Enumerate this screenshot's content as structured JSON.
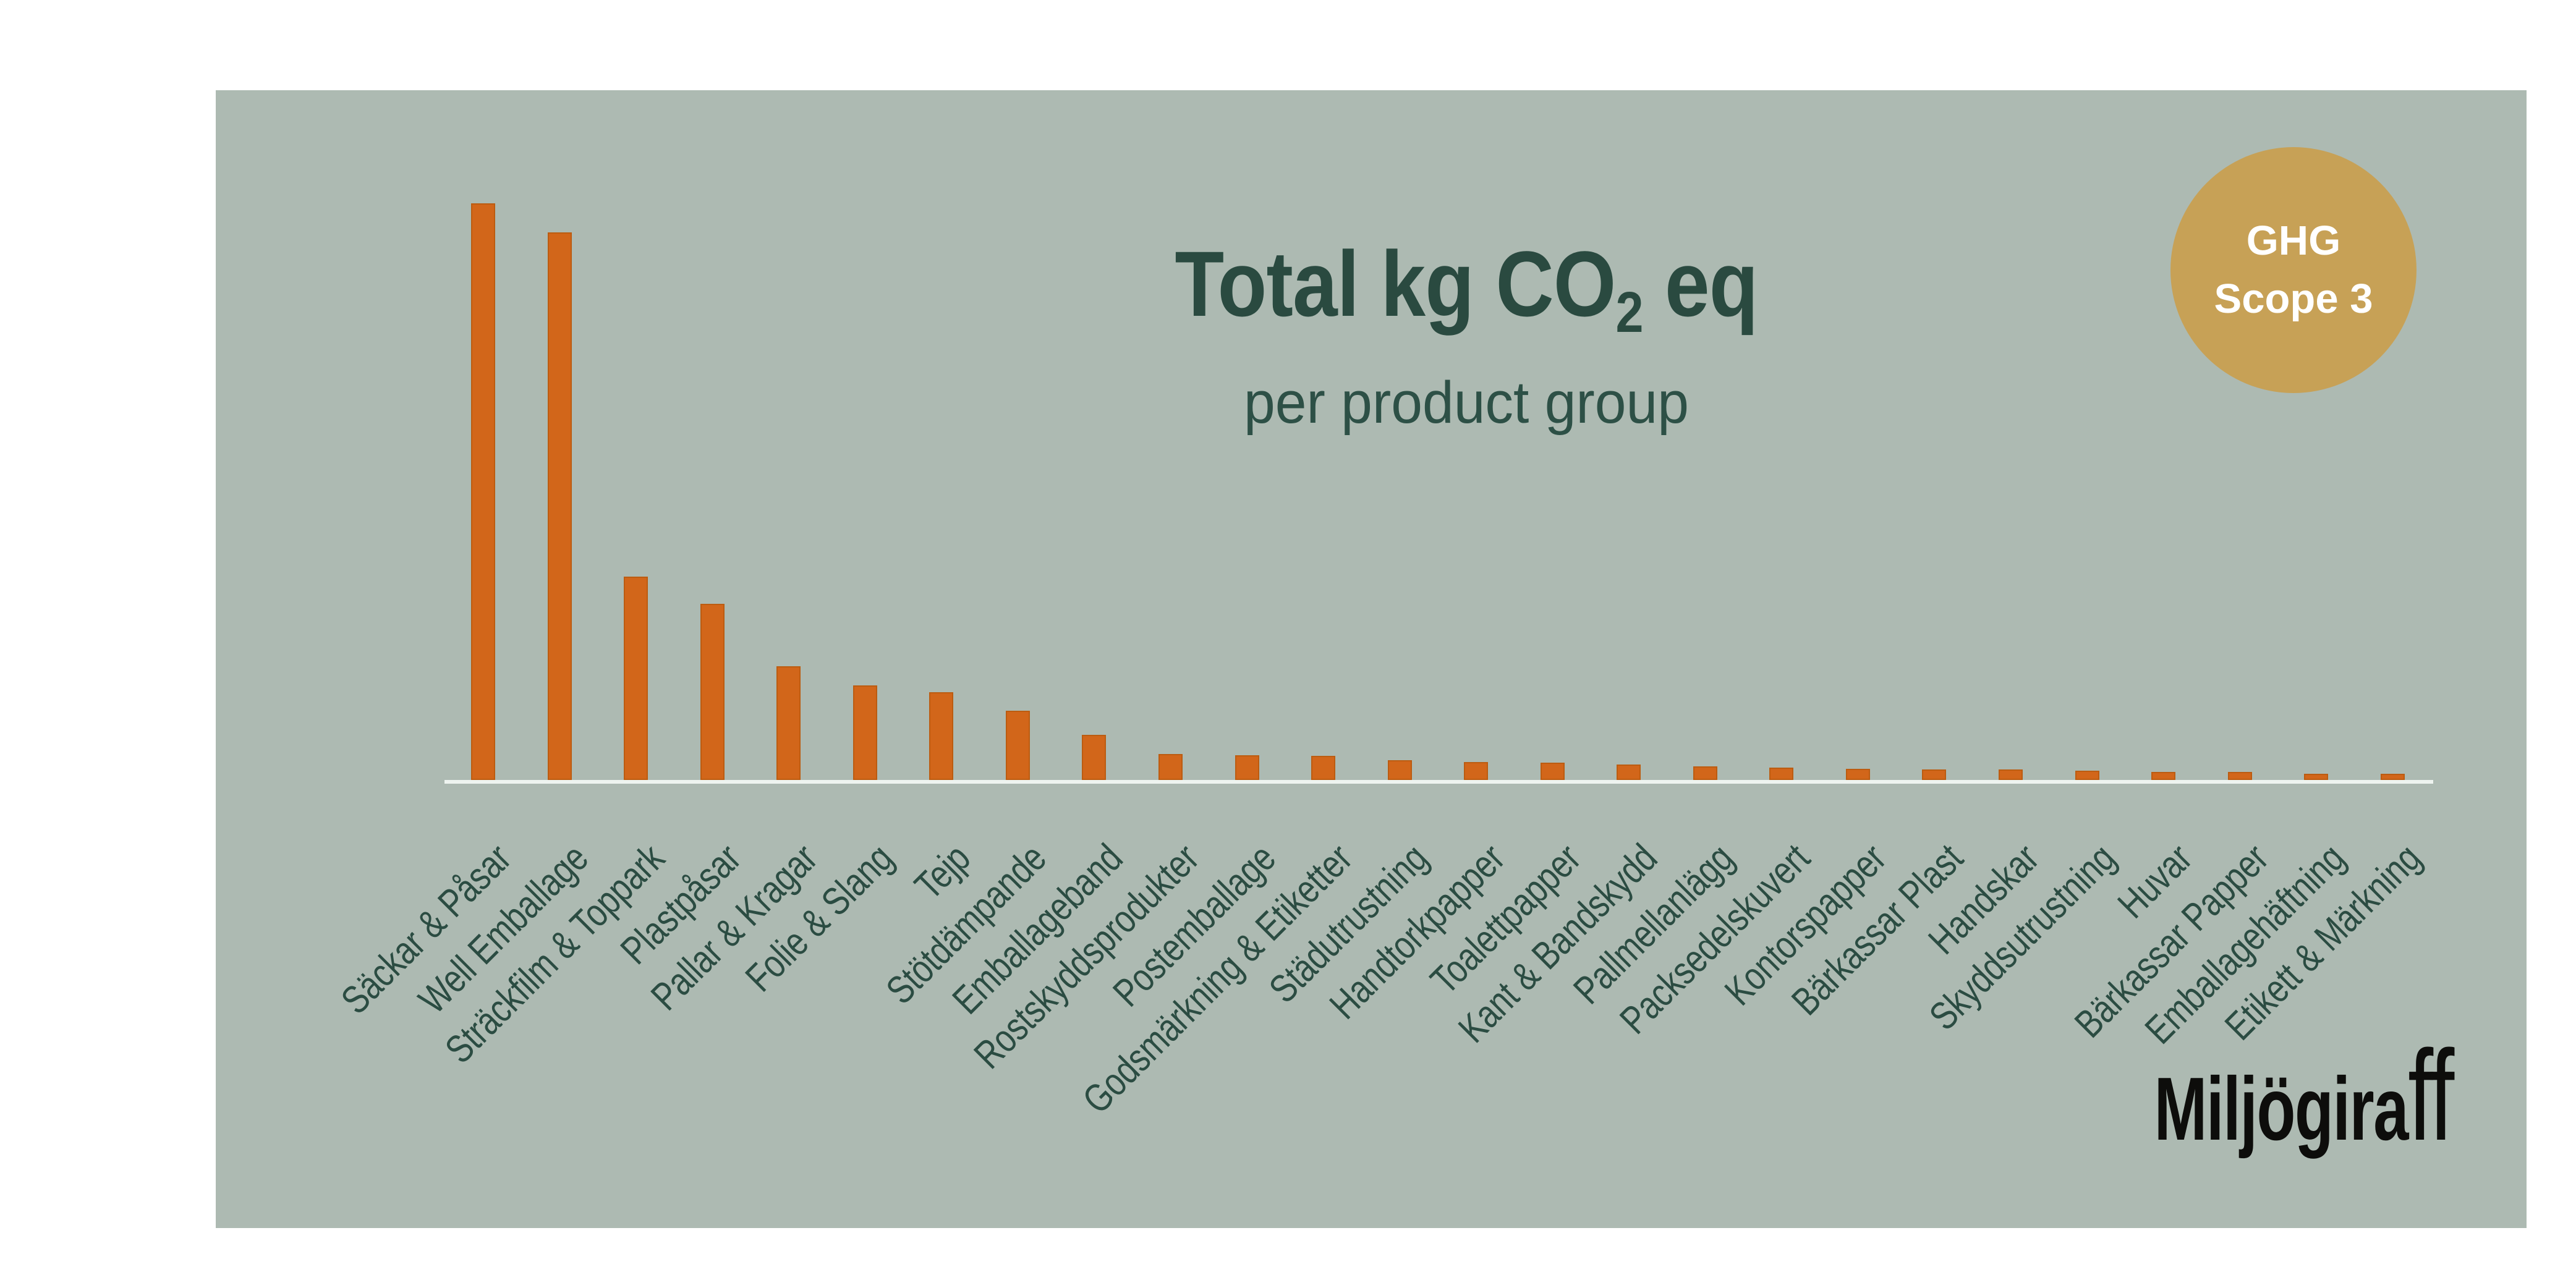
{
  "page": {
    "background": "#ffffff"
  },
  "panel": {
    "background": "#adbab2"
  },
  "header": {
    "title_prefix": "Total kg CO",
    "title_sub": "2",
    "title_suffix": " eq",
    "subtitle": "per product group",
    "title_color": "#2a4a40"
  },
  "badge": {
    "line1": "GHG",
    "line2": "Scope 3",
    "background": "#c7a156",
    "text_color": "#ffffff"
  },
  "logo": {
    "part1": "Miljögira",
    "part2": "ff",
    "color": "#0d0d0b"
  },
  "chart_data": {
    "type": "bar",
    "title": "Total kg CO2 eq",
    "subtitle": "per product group",
    "categories": [
      "Säckar & Påsar",
      "Well Emballage",
      "Sträckfilm & Toppark",
      "Plastpåsar",
      "Pallar & Kragar",
      "Folie & Slang",
      "Tejp",
      "Stötdämpande",
      "Emballageband",
      "Rostskyddsprodukter",
      "Postemballage",
      "Godsmärkning & Etiketter",
      "Städutrustning",
      "Handtorkpapper",
      "Toalettpapper",
      "Kant & Bandskydd",
      "Pallmellanlägg",
      "Packsedelskuvert",
      "Kontorspapper",
      "Bärkassar Plast",
      "Handskar",
      "Skyddsutrustning",
      "Huvar",
      "Bärkassar Papper",
      "Emballagehäftning",
      "Etikett & Märkning"
    ],
    "values_relative_pct": [
      100,
      95,
      35.3,
      30.5,
      19.7,
      16.4,
      15.2,
      12,
      7.8,
      4.5,
      4.3,
      4.2,
      3.4,
      3.1,
      3.0,
      2.7,
      2.4,
      2.1,
      1.9,
      1.8,
      1.8,
      1.6,
      1.4,
      1.4,
      1.1,
      1.1
    ],
    "xlabel": "",
    "ylabel": "",
    "ylim": [
      0,
      100
    ],
    "value_axis_labeled": false,
    "grid": false,
    "legend": false,
    "bar_color": "#d2661a",
    "bar_edge_color": "#bc5c11",
    "axis_line_color": "#eef4f0",
    "label_color": "#2b4c42",
    "note": "No numeric value axis is shown in the image; values are proportional, tallest bar = 100"
  }
}
